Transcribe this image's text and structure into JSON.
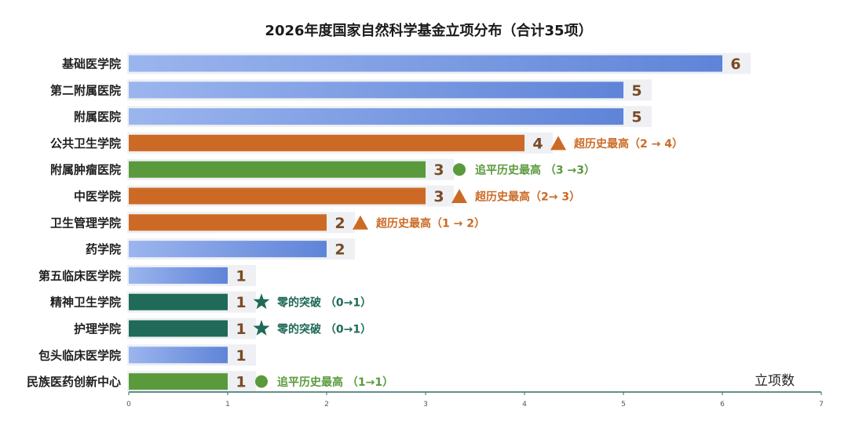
{
  "chart_data": {
    "type": "bar",
    "orientation": "horizontal",
    "title": "2026年度国家自然科学基金立项分布（合计35项）",
    "xlabel": "立项数",
    "xlim": [
      0,
      7
    ],
    "xticks": [
      "0",
      "1",
      "2",
      "3",
      "4",
      "5",
      "6",
      "7"
    ],
    "grid": false,
    "legend": "none",
    "categories": [
      "基础医学院",
      "第二附属医院",
      "附属医院",
      "公共卫生学院",
      "附属肿瘤医院",
      "中医学院",
      "卫生管理学院",
      "药学院",
      "第五临床医学院",
      "精神卫生学院",
      "护理学院",
      "包头临床医学院",
      "民族医药创新中心"
    ],
    "values": [
      6,
      5,
      5,
      4,
      3,
      3,
      2,
      2,
      1,
      1,
      1,
      1,
      1
    ],
    "value_labels": [
      "6",
      "5",
      "5",
      "4",
      "3",
      "3",
      "2",
      "2",
      "1",
      "1",
      "1",
      "1",
      "1"
    ],
    "bar_styles": [
      "blue",
      "blue",
      "blue",
      "orange",
      "green",
      "orange",
      "orange",
      "blue",
      "blue",
      "teal",
      "teal",
      "blue",
      "green"
    ],
    "annotations": [
      null,
      null,
      null,
      {
        "icon": "triangle",
        "text": "超历史最高（2 → 4）",
        "style": "orange"
      },
      {
        "icon": "circle",
        "text": "追平历史最高 （3 →3）",
        "style": "green"
      },
      {
        "icon": "triangle",
        "text": "超历史最高（2→ 3）",
        "style": "orange"
      },
      {
        "icon": "triangle",
        "text": "超历史最高（1 → 2）",
        "style": "orange"
      },
      null,
      null,
      {
        "icon": "star",
        "text": "零的突破 （0→1）",
        "style": "teal"
      },
      {
        "icon": "star",
        "text": "零的突破 （0→1）",
        "style": "teal"
      },
      null,
      {
        "icon": "circle",
        "text": "追平历史最高 （1→1）",
        "style": "green"
      }
    ],
    "colors": {
      "blue": "#6f92e0",
      "orange": "#cc6a25",
      "green": "#5a9a3c",
      "teal": "#1f6a58",
      "value_text": "#7a4a24",
      "axis": "#2f6f62"
    }
  }
}
